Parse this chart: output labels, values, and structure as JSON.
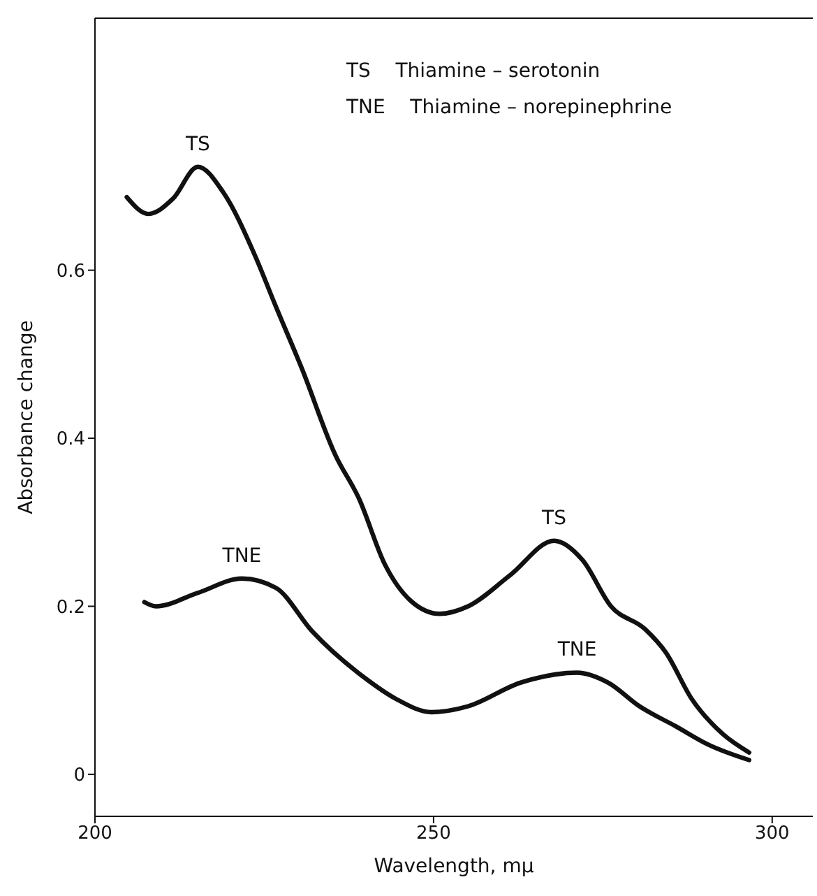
{
  "chart_data": {
    "type": "line",
    "xlabel": "Wavelength,  mμ",
    "ylabel": "Absorbance  change",
    "xlim": [
      200,
      306
    ],
    "ylim": [
      -0.05,
      0.9
    ],
    "xticks": [
      200,
      250,
      300
    ],
    "yticks": [
      0,
      0.2,
      0.4,
      0.6
    ],
    "grid": false,
    "legend": false,
    "marker": "none",
    "line_style": "solid",
    "series": [
      {
        "color": "#111111",
        "x": [
          204.7,
          207.9,
          211.5,
          215.2,
          219,
          223.6,
          226.7,
          230.5,
          235.5,
          239,
          242.8,
          246.7,
          250.9,
          255.1,
          261.3,
          267.8,
          272,
          276.2,
          281.2,
          284.3,
          288.1,
          292.7,
          296.6
        ],
        "values": [
          0.687,
          0.667,
          0.685,
          0.723,
          0.692,
          0.618,
          0.557,
          0.484,
          0.38,
          0.328,
          0.25,
          0.206,
          0.191,
          0.2,
          0.237,
          0.278,
          0.255,
          0.2,
          0.173,
          0.145,
          0.09,
          0.048,
          0.026
        ]
      },
      {
        "color": "#111111",
        "x": [
          207.3,
          209,
          215.2,
          221.7,
          226.7,
          232.1,
          239.8,
          244.4,
          249.7,
          255.1,
          262.8,
          271.2,
          275.8,
          280.4,
          285.8,
          290.4,
          296.6
        ],
        "values": [
          0.205,
          0.2,
          0.216,
          0.233,
          0.222,
          0.17,
          0.115,
          0.09,
          0.074,
          0.081,
          0.109,
          0.121,
          0.109,
          0.081,
          0.057,
          0.036,
          0.017
        ]
      }
    ],
    "annotations": [
      "TS    Thiamine – serotonin",
      "TNE    Thiamine – norepinephrine",
      {
        "text": "TS",
        "x": 215.2,
        "y": 0.723
      },
      {
        "text": "TS",
        "x": 267.8,
        "y": 0.278
      },
      {
        "text": "TNE",
        "x": 221.7,
        "y": 0.233
      },
      {
        "text": "TNE",
        "x": 271.2,
        "y": 0.121
      }
    ]
  }
}
